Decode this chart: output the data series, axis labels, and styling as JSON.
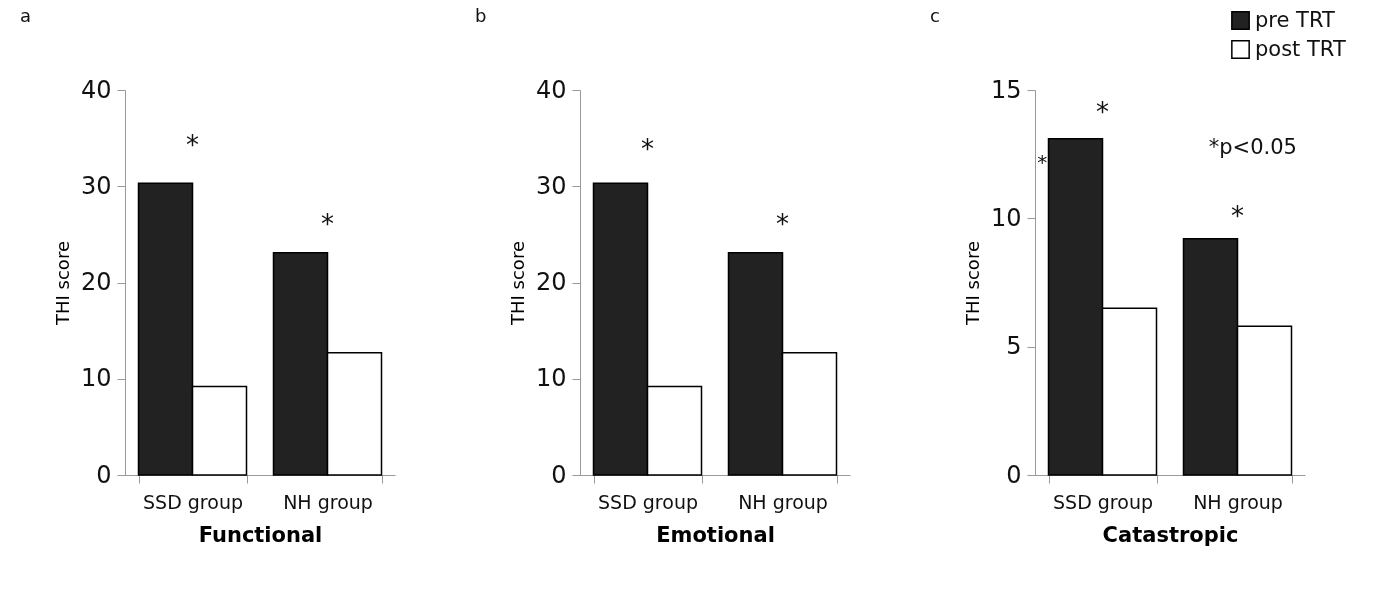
{
  "chart_data": [
    {
      "type": "bar",
      "title": "a",
      "xlabel": "Functional",
      "ylabel": "THI score",
      "categories": [
        "SSD group",
        "NH group"
      ],
      "series": [
        {
          "color": "#222222",
          "values": [
            30.3,
            23.1
          ]
        },
        {
          "color": "#ffffff",
          "values": [
            9.2,
            12.7
          ]
        }
      ],
      "ylim": [
        0,
        40
      ],
      "yticks": [
        0,
        10,
        20,
        30,
        40
      ],
      "grid": false,
      "annotations": [
        "*",
        "*"
      ]
    },
    {
      "type": "bar",
      "title": "b",
      "xlabel": "Emotional",
      "ylabel": "THI score",
      "categories": [
        "SSD group",
        "NH group"
      ],
      "series": [
        {
          "color": "#222222",
          "values": [
            30.3,
            23.1
          ]
        },
        {
          "color": "#ffffff",
          "values": [
            9.2,
            12.7
          ]
        }
      ],
      "ylim": [
        0,
        40
      ],
      "yticks": [
        0,
        10,
        20,
        30,
        40
      ],
      "grid": false,
      "annotations": [
        "*",
        "*"
      ]
    },
    {
      "type": "bar",
      "title": "c",
      "xlabel": "Catastropic",
      "ylabel": "THI score",
      "categories": [
        "SSD group",
        "NH group"
      ],
      "series": [
        {
          "name": "pre TRT",
          "color": "#222222",
          "values": [
            13.1,
            9.2
          ]
        },
        {
          "name": "post TRT",
          "color": "#ffffff",
          "values": [
            6.5,
            5.8
          ]
        }
      ],
      "ylim": [
        0,
        15
      ],
      "yticks": [
        0,
        5,
        10,
        15
      ],
      "grid": false,
      "legend": "top right",
      "annotations": [
        "*",
        "*",
        "*",
        "*p<0.05"
      ]
    }
  ]
}
